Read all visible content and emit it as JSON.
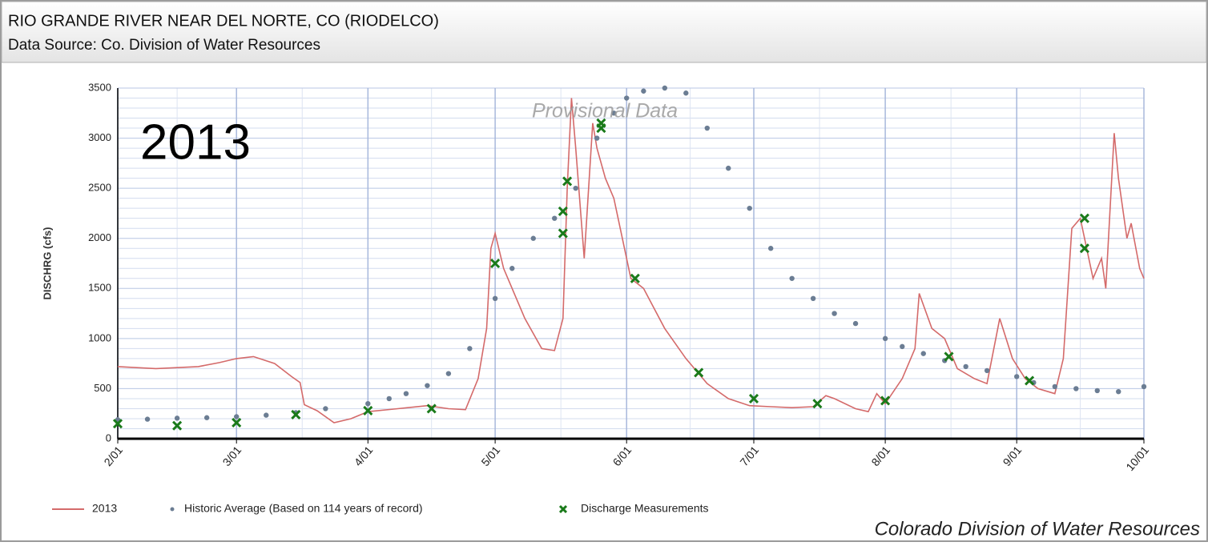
{
  "chart_data": {
    "type": "line",
    "title": "RIO GRANDE RIVER NEAR DEL NORTE, CO (RIODELCO)",
    "subtitle": "Data Source: Co. Division of Water Resources",
    "annotation": "2013",
    "watermark": "Provisional Data",
    "footer": "Colorado Division of Water Resources",
    "ylabel": "DISCHRG (cfs)",
    "xlim": [
      "2/01",
      "10/01"
    ],
    "xticks": [
      "2/01",
      "3/01",
      "4/01",
      "5/01",
      "6/01",
      "7/01",
      "8/01",
      "9/01",
      "10/01"
    ],
    "ylim": [
      0,
      3500
    ],
    "yticks": [
      0,
      500,
      1000,
      1500,
      2000,
      2500,
      3000,
      3500
    ],
    "grid": true,
    "legend": "bottom",
    "series": [
      {
        "name": "2013",
        "color": "#d46a6a",
        "style": "line",
        "x": [
          "2/01",
          "2/10",
          "2/20",
          "2/25",
          "3/01",
          "3/05",
          "3/10",
          "3/14",
          "3/16",
          "3/17",
          "3/20",
          "3/24",
          "3/28",
          "4/01",
          "4/08",
          "4/15",
          "4/20",
          "4/24",
          "4/27",
          "4/29",
          "4/30",
          "5/01",
          "5/03",
          "5/05",
          "5/08",
          "5/12",
          "5/15",
          "5/17",
          "5/18",
          "5/19",
          "5/20",
          "5/22",
          "5/24",
          "5/25",
          "5/27",
          "5/29",
          "5/31",
          "6/02",
          "6/05",
          "6/10",
          "6/15",
          "6/20",
          "6/25",
          "6/30",
          "7/05",
          "7/10",
          "7/15",
          "7/18",
          "7/20",
          "7/25",
          "7/28",
          "7/30",
          "8/01",
          "8/05",
          "8/08",
          "8/09",
          "8/12",
          "8/15",
          "8/18",
          "8/22",
          "8/25",
          "8/28",
          "8/31",
          "9/03",
          "9/06",
          "9/10",
          "9/12",
          "9/14",
          "9/16",
          "9/19",
          "9/21",
          "9/22",
          "9/24",
          "9/25",
          "9/27",
          "9/28",
          "9/30",
          "10/01"
        ],
        "values": [
          720,
          700,
          720,
          760,
          800,
          820,
          750,
          620,
          560,
          340,
          280,
          160,
          200,
          270,
          300,
          330,
          300,
          290,
          600,
          1100,
          1900,
          2050,
          1700,
          1500,
          1200,
          900,
          880,
          1200,
          2500,
          3400,
          2900,
          1800,
          3150,
          2900,
          2600,
          2400,
          2000,
          1600,
          1500,
          1100,
          800,
          550,
          400,
          330,
          320,
          310,
          320,
          430,
          400,
          300,
          270,
          450,
          350,
          600,
          900,
          1450,
          1100,
          1000,
          700,
          600,
          550,
          1200,
          800,
          600,
          500,
          450,
          800,
          2100,
          2200,
          1600,
          1800,
          1500,
          3050,
          2600,
          2000,
          2150,
          1700,
          1600
        ]
      },
      {
        "name": "Historic Average (Based on 114 years of record)",
        "color": "#6b7d93",
        "style": "dots",
        "x": [
          "2/01",
          "2/08",
          "2/15",
          "2/22",
          "3/01",
          "3/08",
          "3/15",
          "3/22",
          "4/01",
          "4/06",
          "4/10",
          "4/15",
          "4/20",
          "4/25",
          "5/01",
          "5/05",
          "5/10",
          "5/15",
          "5/20",
          "5/25",
          "5/29",
          "6/01",
          "6/05",
          "6/10",
          "6/15",
          "6/20",
          "6/25",
          "6/30",
          "7/05",
          "7/10",
          "7/15",
          "7/20",
          "7/25",
          "8/01",
          "8/05",
          "8/10",
          "8/15",
          "8/20",
          "8/25",
          "9/01",
          "9/05",
          "9/10",
          "9/15",
          "9/20",
          "9/25",
          "10/01"
        ],
        "values": [
          190,
          195,
          205,
          210,
          220,
          235,
          260,
          300,
          350,
          400,
          450,
          530,
          650,
          900,
          1400,
          1700,
          2000,
          2200,
          2500,
          3000,
          3250,
          3400,
          3470,
          3500,
          3450,
          3100,
          2700,
          2300,
          1900,
          1600,
          1400,
          1250,
          1150,
          1000,
          920,
          850,
          780,
          720,
          680,
          620,
          560,
          520,
          500,
          480,
          470,
          520
        ]
      },
      {
        "name": "Discharge Measurements",
        "color": "#1a7a1a",
        "style": "cross",
        "x": [
          "2/01",
          "2/15",
          "3/01",
          "3/15",
          "4/01",
          "4/16",
          "5/01",
          "5/17",
          "5/17",
          "5/18",
          "5/26",
          "5/26",
          "6/03",
          "6/18",
          "7/01",
          "7/16",
          "8/01",
          "8/16",
          "9/04",
          "9/17",
          "9/17"
        ],
        "values": [
          150,
          130,
          160,
          240,
          280,
          300,
          1750,
          2270,
          2050,
          2570,
          3100,
          3150,
          1600,
          660,
          400,
          350,
          380,
          820,
          580,
          2200,
          1900
        ]
      }
    ]
  }
}
